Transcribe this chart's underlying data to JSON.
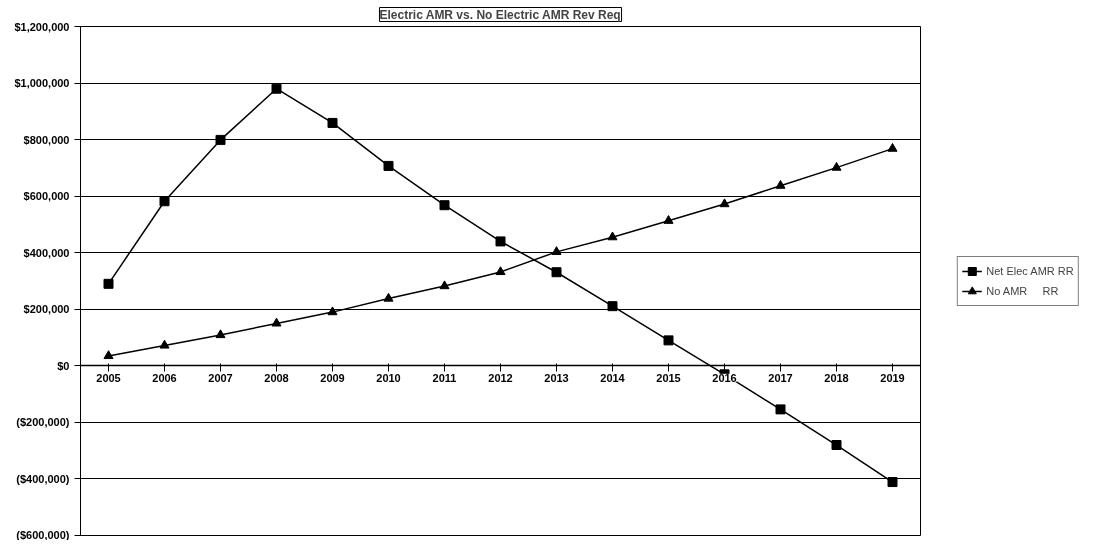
{
  "chart_data": {
    "type": "line",
    "title": "Electric AMR vs. No Electric AMR Rev Req",
    "categories": [
      "2005",
      "2006",
      "2007",
      "2008",
      "2009",
      "2010",
      "2011",
      "2012",
      "2013",
      "2014",
      "2015",
      "2016",
      "2017",
      "2018",
      "2019"
    ],
    "series": [
      {
        "name": "Net Elec AMR RR",
        "color": "#000000",
        "marker": "square",
        "values": [
          290000,
          582000,
          799000,
          980000,
          859000,
          707000,
          568000,
          440000,
          331000,
          211000,
          90000,
          -30000,
          -154000,
          -280000,
          -411000
        ]
      },
      {
        "name": "No AMR     RR",
        "color": "#000000",
        "marker": "triangle",
        "values": [
          35000,
          72000,
          109000,
          150000,
          190000,
          238000,
          282000,
          332000,
          403000,
          455000,
          513000,
          572000,
          637000,
          701000,
          768000
        ]
      }
    ],
    "ylim": [
      -600000,
      1200000
    ],
    "yticks": [
      {
        "value": -600000,
        "label": "($600,000)"
      },
      {
        "value": -400000,
        "label": "($400,000)"
      },
      {
        "value": -200000,
        "label": "($200,000)"
      },
      {
        "value": 0,
        "label": "$0"
      },
      {
        "value": 200000,
        "label": "$200,000"
      },
      {
        "value": 400000,
        "label": "$400,000"
      },
      {
        "value": 600000,
        "label": "$600,000"
      },
      {
        "value": 800000,
        "label": "$800,000"
      },
      {
        "value": 1000000,
        "label": "$1,000,000"
      },
      {
        "value": 1200000,
        "label": "$1,200,000"
      }
    ],
    "grid": "y",
    "legend": "right",
    "line_style": "solid"
  }
}
